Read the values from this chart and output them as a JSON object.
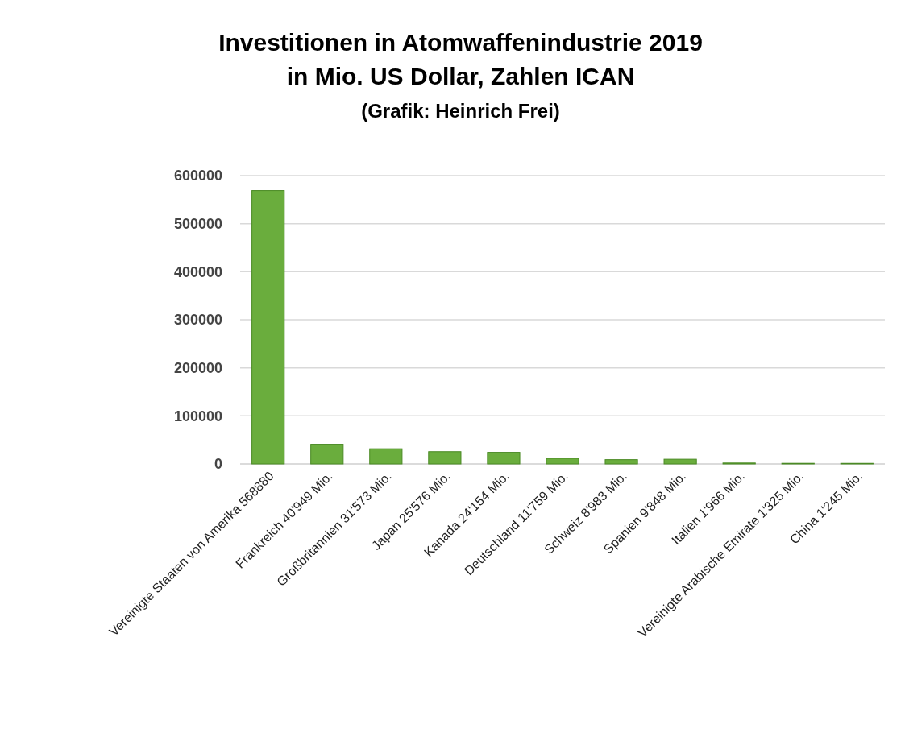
{
  "chart_data": {
    "type": "bar",
    "title": "Investitionen in Atomwaffenindustrie 2019",
    "subtitle": "in Mio. US Dollar, Zahlen ICAN",
    "annotations": [
      "(Grafik: Heinrich Frei)"
    ],
    "categories": [
      "Vereinigte Staaten von Amerika 568880",
      "Frankreich  40'949 Mio.",
      "Großbritannien  31'573 Mio.",
      "Japan  25'576 Mio.",
      "Kanada  24'154 Mio.",
      "Deutschland  11'759 Mio.",
      "Schweiz  8'983 Mio.",
      "Spanien  9'848 Mio.",
      "Italien 1'966 Mio.",
      "Vereinigte Arabische Emirate  1'325 Mio.",
      "China 1'245 Mio."
    ],
    "values": [
      568880,
      40949,
      31573,
      25576,
      24154,
      11759,
      8983,
      9848,
      1966,
      1325,
      1245
    ],
    "color": "#6aad3d",
    "ylim": [
      0,
      600000
    ],
    "yticks": [
      0,
      100000,
      200000,
      300000,
      400000,
      500000,
      600000
    ],
    "grid": "y"
  }
}
